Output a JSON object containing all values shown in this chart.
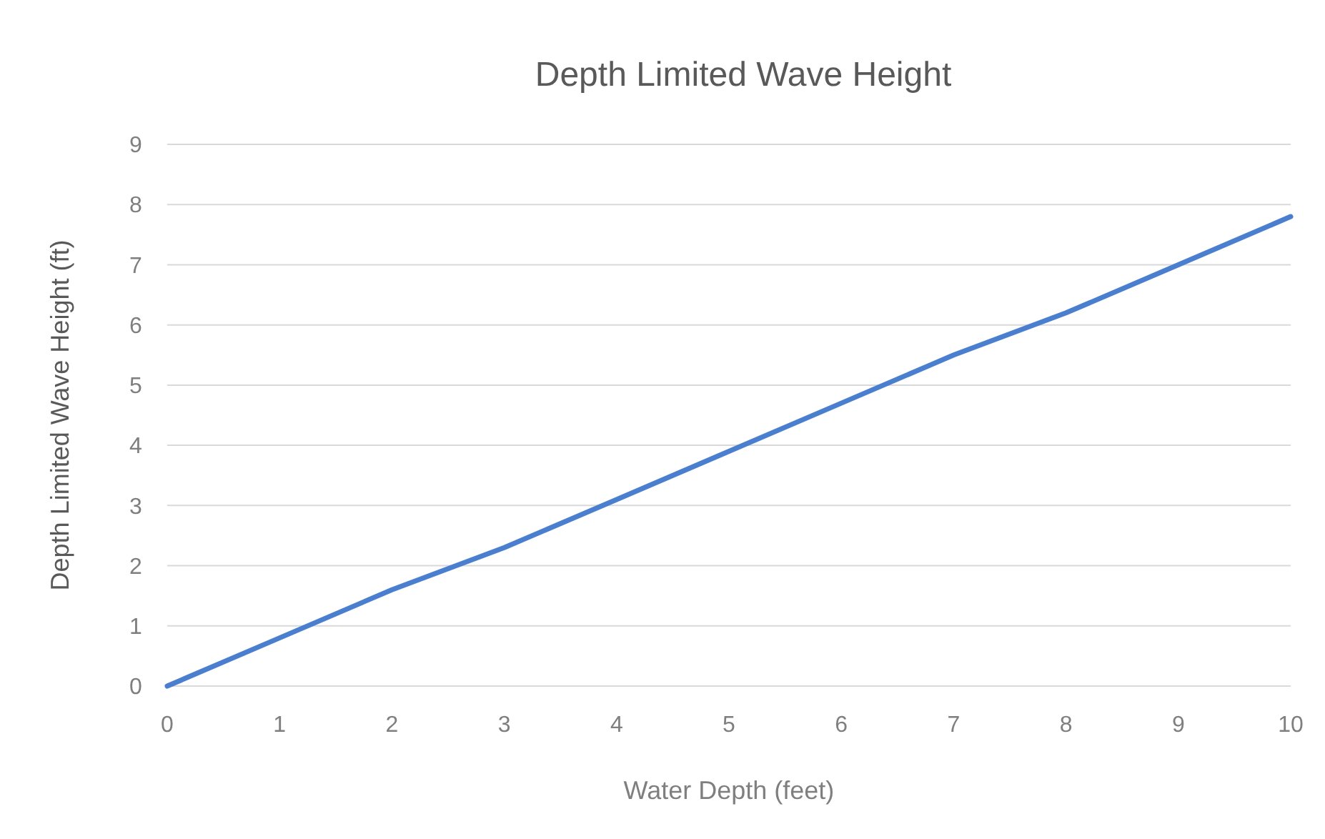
{
  "chart_data": {
    "type": "line",
    "title": "Depth Limited Wave Height",
    "xlabel": "Water Depth (feet)",
    "ylabel": "Depth Limited Wave Height (ft)",
    "x": [
      0,
      1,
      2,
      3,
      4,
      5,
      6,
      7,
      8,
      9,
      10
    ],
    "series": [
      {
        "color": "#4a7fd0",
        "values": [
          0,
          0.8,
          1.6,
          2.3,
          3.1,
          3.9,
          4.7,
          5.5,
          6.2,
          7.0,
          7.8
        ]
      }
    ],
    "xlim": [
      0,
      10
    ],
    "xticks": [
      0,
      1,
      2,
      3,
      4,
      5,
      6,
      7,
      8,
      9,
      10
    ],
    "ylim": [
      0,
      9
    ],
    "yticks": [
      0,
      1,
      2,
      3,
      4,
      5,
      6,
      7,
      8,
      9
    ],
    "grid": "y",
    "marker": "none",
    "line_style": "solid"
  }
}
